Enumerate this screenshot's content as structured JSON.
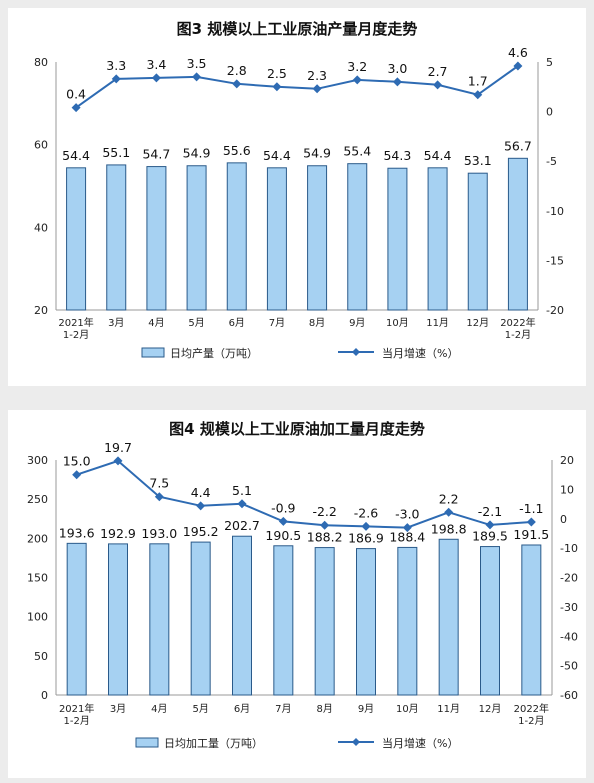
{
  "chart_data": [
    {
      "type": "bar+line",
      "title": "图3 规模以上工业原油产量月度走势",
      "categories": [
        [
          "2021年",
          "1-2月"
        ],
        [
          "3月"
        ],
        [
          "4月"
        ],
        [
          "5月"
        ],
        [
          "6月"
        ],
        [
          "7月"
        ],
        [
          "8月"
        ],
        [
          "9月"
        ],
        [
          "10月"
        ],
        [
          "11月"
        ],
        [
          "12月"
        ],
        [
          "2022年",
          "1-2月"
        ]
      ],
      "bar_series": {
        "name": "日均产量（万吨）",
        "values": [
          54.4,
          55.1,
          54.7,
          54.9,
          55.6,
          54.4,
          54.9,
          55.4,
          54.3,
          54.4,
          53.1,
          56.7
        ],
        "labels": [
          "54.4",
          "55.1",
          "54.7",
          "54.9",
          "55.6",
          "54.4",
          "54.9",
          "55.4",
          "54.3",
          "54.4",
          "53.1",
          "56.7"
        ]
      },
      "line_series": {
        "name": "当月增速（%）",
        "values": [
          0.4,
          3.3,
          3.4,
          3.5,
          2.8,
          2.5,
          2.3,
          3.2,
          3.0,
          2.7,
          1.7,
          4.6
        ],
        "labels": [
          "0.4",
          "3.3",
          "3.4",
          "3.5",
          "2.8",
          "2.5",
          "2.3",
          "3.2",
          "3.0",
          "2.7",
          "1.7",
          "4.6"
        ]
      },
      "y_left": {
        "min": 20,
        "max": 80,
        "ticks": [
          20,
          40,
          60,
          80
        ]
      },
      "y_right": {
        "min": -20,
        "max": 5,
        "ticks": [
          -20,
          -15,
          -10,
          -5,
          0,
          5
        ]
      },
      "grid": false,
      "legend_position": "bottom",
      "colors": {
        "bar_fill": "#a6d1f2",
        "bar_stroke": "#2a5a8a",
        "line": "#2e6bb3"
      }
    },
    {
      "type": "bar+line",
      "title": "图4 规模以上工业原油加工量月度走势",
      "categories": [
        [
          "2021年",
          "1-2月"
        ],
        [
          "3月"
        ],
        [
          "4月"
        ],
        [
          "5月"
        ],
        [
          "6月"
        ],
        [
          "7月"
        ],
        [
          "8月"
        ],
        [
          "9月"
        ],
        [
          "10月"
        ],
        [
          "11月"
        ],
        [
          "12月"
        ],
        [
          "2022年",
          "1-2月"
        ]
      ],
      "bar_series": {
        "name": "日均加工量（万吨）",
        "values": [
          193.6,
          192.9,
          193.0,
          195.2,
          202.7,
          190.5,
          188.2,
          186.9,
          188.4,
          198.8,
          189.5,
          191.5
        ],
        "labels": [
          "193.6",
          "192.9",
          "193.0",
          "195.2",
          "202.7",
          "190.5",
          "188.2",
          "186.9",
          "188.4",
          "198.8",
          "189.5",
          "191.5"
        ]
      },
      "line_series": {
        "name": "当月增速（%）",
        "values": [
          15.0,
          19.7,
          7.5,
          4.4,
          5.1,
          -0.9,
          -2.2,
          -2.6,
          -3.0,
          2.2,
          -2.1,
          -1.1
        ],
        "labels": [
          "15.0",
          "19.7",
          "7.5",
          "4.4",
          "5.1",
          "-0.9",
          "-2.2",
          "-2.6",
          "-3.0",
          "2.2",
          "-2.1",
          "-1.1"
        ]
      },
      "y_left": {
        "min": 0,
        "max": 300,
        "ticks": [
          0,
          50,
          100,
          150,
          200,
          250,
          300
        ]
      },
      "y_right": {
        "min": -60,
        "max": 20,
        "ticks": [
          -60,
          -50,
          -40,
          -30,
          -20,
          -10,
          0,
          10,
          20
        ]
      },
      "grid": false,
      "legend_position": "bottom",
      "colors": {
        "bar_fill": "#a6d1f2",
        "bar_stroke": "#2a5a8a",
        "line": "#2e6bb3"
      }
    }
  ]
}
